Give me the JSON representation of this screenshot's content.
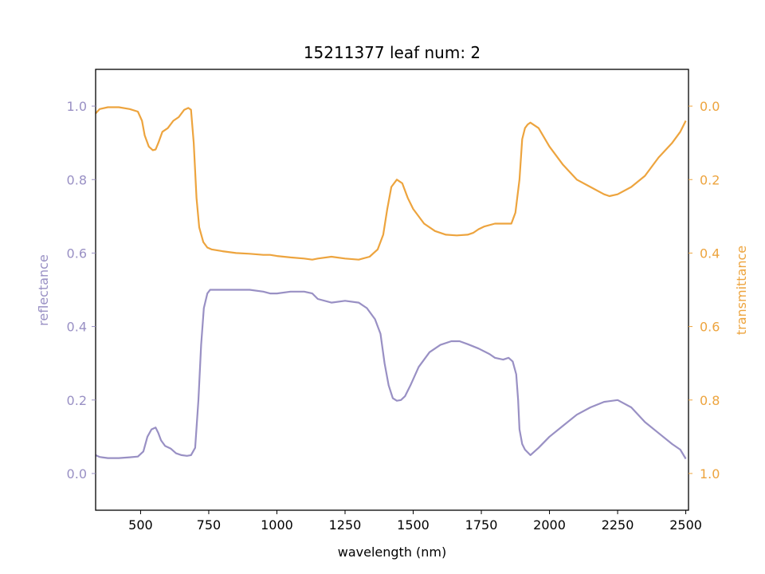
{
  "chart_data": {
    "type": "line",
    "title": "15211377 leaf num: 2",
    "xlabel": "wavelength (nm)",
    "ylabel_left": "reflectance",
    "ylabel_right": "transmittance",
    "xlim": [
      335,
      2510
    ],
    "ylim_left": [
      -0.1,
      1.1
    ],
    "ylim_right": [
      1.1,
      -0.1
    ],
    "right_axis_inverted": true,
    "grid": false,
    "x_ticks": [
      "500",
      "750",
      "1000",
      "1250",
      "1500",
      "1750",
      "2000",
      "2250",
      "2500"
    ],
    "y_ticks_left": [
      "0.0",
      "0.2",
      "0.4",
      "0.6",
      "0.8",
      "1.0"
    ],
    "y_ticks_right": [
      "0.0",
      "0.2",
      "0.4",
      "0.6",
      "0.8",
      "1.0"
    ],
    "colors": {
      "reflectance": "#9990c4",
      "transmittance": "#eda43e"
    },
    "series": [
      {
        "key": "reflectance",
        "axis": "left",
        "x": [
          335,
          350,
          380,
          420,
          460,
          490,
          510,
          525,
          540,
          555,
          565,
          575,
          590,
          610,
          630,
          650,
          670,
          685,
          700,
          712,
          722,
          732,
          745,
          755,
          765,
          800,
          850,
          900,
          950,
          975,
          990,
          1000,
          1050,
          1100,
          1130,
          1150,
          1200,
          1250,
          1300,
          1330,
          1360,
          1380,
          1395,
          1410,
          1425,
          1440,
          1455,
          1470,
          1490,
          1520,
          1560,
          1600,
          1640,
          1670,
          1700,
          1740,
          1780,
          1800,
          1830,
          1850,
          1865,
          1878,
          1885,
          1890,
          1900,
          1910,
          1930,
          1960,
          2000,
          2050,
          2100,
          2150,
          2200,
          2250,
          2300,
          2350,
          2400,
          2450,
          2480,
          2500
        ],
        "y": [
          0.05,
          0.045,
          0.042,
          0.042,
          0.044,
          0.046,
          0.06,
          0.1,
          0.12,
          0.125,
          0.11,
          0.09,
          0.075,
          0.068,
          0.055,
          0.05,
          0.048,
          0.05,
          0.07,
          0.2,
          0.35,
          0.45,
          0.49,
          0.5,
          0.5,
          0.5,
          0.5,
          0.5,
          0.495,
          0.49,
          0.49,
          0.49,
          0.495,
          0.495,
          0.49,
          0.475,
          0.465,
          0.47,
          0.465,
          0.45,
          0.42,
          0.38,
          0.3,
          0.24,
          0.205,
          0.198,
          0.2,
          0.21,
          0.24,
          0.29,
          0.33,
          0.35,
          0.36,
          0.36,
          0.352,
          0.34,
          0.325,
          0.315,
          0.31,
          0.315,
          0.305,
          0.27,
          0.2,
          0.12,
          0.08,
          0.065,
          0.05,
          0.07,
          0.1,
          0.13,
          0.16,
          0.18,
          0.195,
          0.2,
          0.18,
          0.14,
          0.11,
          0.08,
          0.065,
          0.04
        ]
      },
      {
        "key": "transmittance",
        "axis": "right",
        "x": [
          335,
          350,
          380,
          420,
          460,
          490,
          505,
          515,
          530,
          545,
          555,
          565,
          580,
          600,
          620,
          640,
          660,
          675,
          685,
          695,
          705,
          715,
          730,
          745,
          760,
          800,
          850,
          900,
          950,
          975,
          1000,
          1050,
          1100,
          1130,
          1150,
          1200,
          1250,
          1300,
          1340,
          1370,
          1390,
          1405,
          1420,
          1440,
          1460,
          1480,
          1500,
          1540,
          1580,
          1620,
          1660,
          1700,
          1720,
          1740,
          1760,
          1800,
          1840,
          1860,
          1875,
          1890,
          1900,
          1910,
          1920,
          1930,
          1960,
          2000,
          2050,
          2100,
          2150,
          2200,
          2220,
          2250,
          2300,
          2350,
          2400,
          2450,
          2480,
          2500
        ],
        "y": [
          0.02,
          0.008,
          0.003,
          0.003,
          0.008,
          0.015,
          0.04,
          0.08,
          0.11,
          0.12,
          0.118,
          0.1,
          0.07,
          0.06,
          0.04,
          0.03,
          0.01,
          0.005,
          0.01,
          0.1,
          0.25,
          0.33,
          0.37,
          0.385,
          0.39,
          0.395,
          0.4,
          0.402,
          0.405,
          0.405,
          0.408,
          0.412,
          0.415,
          0.418,
          0.415,
          0.41,
          0.415,
          0.418,
          0.41,
          0.39,
          0.35,
          0.28,
          0.22,
          0.2,
          0.21,
          0.25,
          0.28,
          0.32,
          0.34,
          0.35,
          0.352,
          0.35,
          0.345,
          0.335,
          0.328,
          0.32,
          0.32,
          0.32,
          0.29,
          0.2,
          0.09,
          0.06,
          0.05,
          0.045,
          0.06,
          0.11,
          0.16,
          0.2,
          0.22,
          0.24,
          0.245,
          0.24,
          0.22,
          0.19,
          0.14,
          0.1,
          0.07,
          0.04
        ]
      }
    ]
  }
}
